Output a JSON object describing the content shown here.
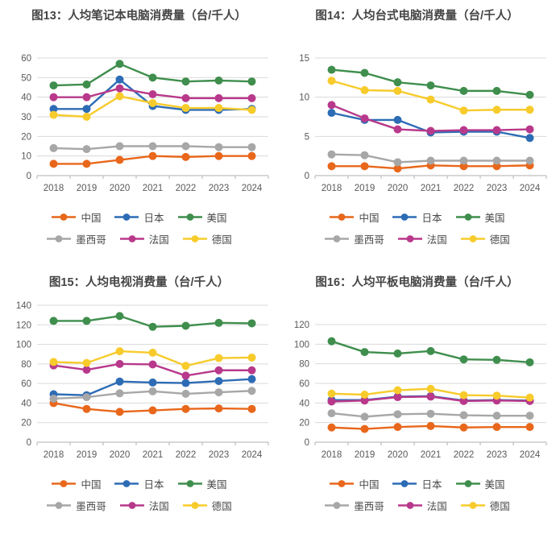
{
  "page": {
    "background": "#FFFFFF"
  },
  "axis_style": {
    "grid_color": "#DADADA",
    "axis_color": "#BFBFBF",
    "tick_label_color": "#595959"
  },
  "chart_data": [
    {
      "type": "line",
      "title": "图13：人均笔记本电脑消费量（台/千人）",
      "categories": [
        "2018",
        "2019",
        "2020",
        "2021",
        "2022",
        "2023",
        "2024"
      ],
      "xlabel": "",
      "ylabel": "",
      "ylim": [
        0,
        60
      ],
      "ytick_step": 10,
      "grid": true,
      "legend_position": "bottom",
      "series": [
        {
          "name": "中国",
          "color": "#E8671B",
          "values": [
            6,
            6,
            8,
            10,
            9.5,
            10,
            10
          ]
        },
        {
          "name": "日本",
          "color": "#2D6CB5",
          "values": [
            34,
            34,
            49,
            35.5,
            33.5,
            33.5,
            34
          ]
        },
        {
          "name": "美国",
          "color": "#3F8E4D",
          "values": [
            46,
            46.5,
            57,
            50,
            48,
            48.5,
            48
          ]
        },
        {
          "name": "墨西哥",
          "color": "#A7A7A7",
          "values": [
            14,
            13.5,
            15,
            15,
            15,
            14.5,
            14.5
          ]
        },
        {
          "name": "法国",
          "color": "#B8398B",
          "values": [
            40,
            40,
            44.5,
            41.5,
            39.5,
            39.5,
            39.5
          ]
        },
        {
          "name": "德国",
          "color": "#F7CB2B",
          "values": [
            31,
            30,
            40.5,
            37,
            34.5,
            34.5,
            33.5
          ]
        }
      ]
    },
    {
      "type": "line",
      "title": "图14：人均台式电脑消费量（台/千人）",
      "categories": [
        "2018",
        "2019",
        "2020",
        "2021",
        "2022",
        "2023",
        "2024"
      ],
      "xlabel": "",
      "ylabel": "",
      "ylim": [
        0,
        15
      ],
      "ytick_step": 5,
      "grid": true,
      "legend_position": "bottom",
      "series": [
        {
          "name": "中国",
          "color": "#E8671B",
          "values": [
            1.2,
            1.2,
            0.9,
            1.3,
            1.2,
            1.2,
            1.3
          ]
        },
        {
          "name": "日本",
          "color": "#2D6CB5",
          "values": [
            8.0,
            7.1,
            7.1,
            5.5,
            5.6,
            5.6,
            4.8
          ]
        },
        {
          "name": "美国",
          "color": "#3F8E4D",
          "values": [
            13.5,
            13.1,
            11.9,
            11.5,
            10.8,
            10.8,
            10.3
          ]
        },
        {
          "name": "墨西哥",
          "color": "#A7A7A7",
          "values": [
            2.7,
            2.6,
            1.7,
            1.9,
            1.9,
            1.9,
            1.9
          ]
        },
        {
          "name": "法国",
          "color": "#B8398B",
          "values": [
            9.0,
            7.3,
            5.9,
            5.7,
            5.8,
            5.8,
            5.9
          ]
        },
        {
          "name": "德国",
          "color": "#F7CB2B",
          "values": [
            12.1,
            10.9,
            10.8,
            9.7,
            8.3,
            8.4,
            8.4
          ]
        }
      ]
    },
    {
      "type": "line",
      "title": "图15：人均电视消费量（台/千人）",
      "categories": [
        "2018",
        "2019",
        "2020",
        "2021",
        "2022",
        "2023",
        "2024"
      ],
      "xlabel": "",
      "ylabel": "",
      "ylim": [
        0,
        140
      ],
      "ytick_step": 20,
      "grid": true,
      "legend_position": "bottom",
      "series": [
        {
          "name": "中国",
          "color": "#E8671B",
          "values": [
            40,
            34,
            31,
            32.5,
            34,
            34.5,
            34
          ]
        },
        {
          "name": "日本",
          "color": "#2D6CB5",
          "values": [
            49,
            48,
            62,
            61,
            60.5,
            62.5,
            64.5
          ]
        },
        {
          "name": "美国",
          "color": "#3F8E4D",
          "values": [
            124,
            124,
            129,
            118,
            119,
            122,
            121.5
          ]
        },
        {
          "name": "墨西哥",
          "color": "#A7A7A7",
          "values": [
            44.5,
            46,
            50,
            52,
            49.5,
            51,
            52.5
          ]
        },
        {
          "name": "法国",
          "color": "#B8398B",
          "values": [
            78.5,
            74,
            80,
            79.5,
            68,
            73.5,
            73.5
          ]
        },
        {
          "name": "德国",
          "color": "#F7CB2B",
          "values": [
            82,
            81,
            93,
            91.5,
            78,
            86,
            86.5
          ]
        }
      ]
    },
    {
      "type": "line",
      "title": "图16：人均平板电脑消费量（台/千人）",
      "categories": [
        "2018",
        "2019",
        "2020",
        "2021",
        "2022",
        "2023",
        "2024"
      ],
      "xlabel": "",
      "ylabel": "",
      "ylim": [
        0,
        120
      ],
      "ytick_step": 20,
      "grid": true,
      "legend_position": "bottom",
      "series": [
        {
          "name": "中国",
          "color": "#E8671B",
          "values": [
            15,
            13.5,
            15.5,
            16.5,
            15,
            15.5,
            15.5
          ]
        },
        {
          "name": "日本",
          "color": "#2D6CB5",
          "values": [
            43,
            43,
            46.5,
            47,
            42.5,
            43,
            42.5
          ]
        },
        {
          "name": "美国",
          "color": "#3F8E4D",
          "values": [
            103,
            92,
            90.5,
            93,
            84.5,
            84,
            81.5
          ]
        },
        {
          "name": "墨西哥",
          "color": "#A7A7A7",
          "values": [
            29.5,
            26,
            28.5,
            29,
            27.5,
            27,
            27
          ]
        },
        {
          "name": "法国",
          "color": "#B8398B",
          "values": [
            41.5,
            42.5,
            46,
            46.5,
            42,
            42.5,
            42
          ]
        },
        {
          "name": "德国",
          "color": "#F7CB2B",
          "values": [
            49.5,
            48.5,
            53,
            54.5,
            48,
            47.5,
            45.5
          ]
        }
      ]
    }
  ]
}
